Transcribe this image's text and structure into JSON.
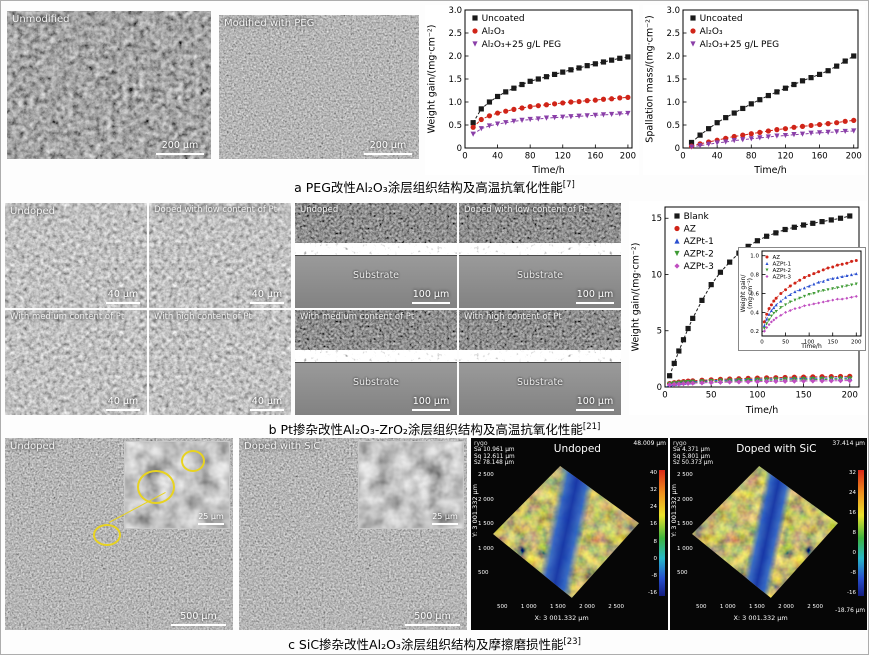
{
  "section_a": {
    "caption": "a PEG改性Al₂O₃涂层组织结构及高温抗氧化性能",
    "ref": "[7]",
    "sem1": {
      "label": "Unmodified",
      "scale": "200 μm"
    },
    "sem2": {
      "label": "Modified with PEG",
      "scale": "200 μm"
    }
  },
  "section_b": {
    "caption": "b Pt掺杂改性Al₂O₃-ZrO₂涂层组织结构及高温抗氧化性能",
    "ref": "[21]",
    "sem_grid": [
      {
        "label": "Undoped",
        "scale": "40 μm"
      },
      {
        "label": "Doped with low content of Pt",
        "scale": "40 μm"
      },
      {
        "label": "With medium content of Pt",
        "scale": "40 μm"
      },
      {
        "label": "With high content of Pt",
        "scale": "40 μm"
      }
    ],
    "cross_grid": [
      {
        "label": "Undoped",
        "substrate": "Substrate",
        "scale": "100 μm"
      },
      {
        "label": "Doped with low content of Pt",
        "substrate": "Substrate",
        "scale": "100 μm"
      },
      {
        "label": "With medium content of Pt",
        "substrate": "Substrate",
        "scale": "100 μm"
      },
      {
        "label": "With high content of Pt",
        "substrate": "Substrate",
        "scale": "100 μm"
      }
    ]
  },
  "section_c": {
    "caption": "c SiC掺杂改性Al₂O₃涂层组织结构及摩擦磨损性能",
    "ref": "[23]",
    "sem1": {
      "label": "Undoped",
      "scale": "500 μm",
      "inset_scale": "25 μm"
    },
    "sem2": {
      "label": "Doped with SiC",
      "scale": "500 μm",
      "inset_scale": "25 μm"
    },
    "profile1": {
      "brand": "rygo",
      "title": "Undoped",
      "stats": [
        "Sa 10.961 μm",
        "Sq 12.611 μm",
        "Sz 78.148 μm"
      ],
      "max_label": "48.009 μm",
      "colorbar_ticks": [
        "40",
        "32",
        "24",
        "16",
        "8",
        "0",
        "-8",
        "-16"
      ],
      "x_axis_label": "X: 3 001.332 μm",
      "y_axis_label": "Y: 3 001.332 μm",
      "x_ticks": [
        "500",
        "1 000",
        "1 500",
        "2 000",
        "2 500"
      ],
      "y_ticks": [
        "2 500",
        "2 000",
        "1 500",
        "1 000",
        "500"
      ]
    },
    "profile2": {
      "brand": "rygo",
      "title": "Doped with SiC",
      "stats": [
        "Sa 4.371 μm",
        "Sq 5.801 μm",
        "Sz 50.373 μm"
      ],
      "max_label": "37.414 μm",
      "min_label": "-18.76 μm",
      "colorbar_ticks": [
        "32",
        "24",
        "16",
        "8",
        "0",
        "-8",
        "-16"
      ],
      "x_axis_label": "X: 3 001.332 μm",
      "y_axis_label": "Y: 3 001.332 μm",
      "x_ticks": [
        "500",
        "1 000",
        "1 500",
        "2 000",
        "2 500"
      ],
      "y_ticks": [
        "2 500",
        "2 000",
        "1 500",
        "1 000",
        "500"
      ]
    }
  },
  "chart_data": [
    {
      "id": "peg-weight-gain",
      "type": "line",
      "xlabel": "Time/h",
      "ylabel": "Weight gain/(mg·cm⁻²)",
      "xlim": [
        0,
        205
      ],
      "ylim": [
        0,
        3.0
      ],
      "xticks": [
        0,
        40,
        80,
        120,
        160,
        200
      ],
      "xtick_labels": [
        "0",
        "40",
        "80",
        "120",
        "160",
        "200"
      ],
      "yticks": [
        0,
        0.5,
        1.0,
        1.5,
        2.0,
        2.5,
        3.0
      ],
      "ytick_labels": [
        "0",
        "0.5",
        "1.0",
        "1.5",
        "2.0",
        "2.5",
        "3.0"
      ],
      "x": [
        10,
        20,
        30,
        40,
        50,
        60,
        70,
        80,
        90,
        100,
        110,
        120,
        130,
        140,
        150,
        160,
        170,
        180,
        190,
        200
      ],
      "series": [
        {
          "name": "Uncoated",
          "color": "#1a1a1a",
          "marker": "square",
          "y": [
            0.55,
            0.85,
            1.0,
            1.12,
            1.22,
            1.3,
            1.38,
            1.45,
            1.5,
            1.55,
            1.6,
            1.65,
            1.7,
            1.74,
            1.79,
            1.83,
            1.87,
            1.91,
            1.95,
            1.98
          ]
        },
        {
          "name": "Al₂O₃",
          "color": "#d02418",
          "marker": "circle",
          "y": [
            0.45,
            0.62,
            0.7,
            0.76,
            0.8,
            0.84,
            0.87,
            0.9,
            0.92,
            0.94,
            0.96,
            0.98,
            1.0,
            1.01,
            1.03,
            1.04,
            1.06,
            1.07,
            1.09,
            1.1
          ]
        },
        {
          "name": "Al₂O₃+25 g/L PEG",
          "color": "#8a3fa8",
          "marker": "triangle-down",
          "y": [
            0.3,
            0.42,
            0.48,
            0.52,
            0.55,
            0.58,
            0.6,
            0.62,
            0.63,
            0.65,
            0.66,
            0.67,
            0.68,
            0.69,
            0.7,
            0.71,
            0.72,
            0.73,
            0.74,
            0.75
          ]
        }
      ],
      "margins": {
        "l": 40,
        "r": 7,
        "t": 5,
        "b": 27
      },
      "fonts": {
        "tick": 8.5,
        "label": 9.5,
        "legend": 9
      },
      "ms": 2.6,
      "legend_dx": 10,
      "legend_dy": 8,
      "legend_lh": 13,
      "dash": "3 2",
      "lw": 1
    },
    {
      "id": "peg-spallation",
      "type": "line",
      "xlabel": "Time/h",
      "ylabel": "Spallation mass/(mg·cm⁻²)",
      "xlim": [
        0,
        205
      ],
      "ylim": [
        0,
        3.0
      ],
      "xticks": [
        0,
        40,
        80,
        120,
        160,
        200
      ],
      "xtick_labels": [
        "0",
        "40",
        "80",
        "120",
        "160",
        "200"
      ],
      "yticks": [
        0,
        0.5,
        1.0,
        1.5,
        2.0,
        2.5,
        3.0
      ],
      "ytick_labels": [
        "0",
        "0.5",
        "1.0",
        "1.5",
        "2.0",
        "2.5",
        "3.0"
      ],
      "x": [
        10,
        20,
        30,
        40,
        50,
        60,
        70,
        80,
        90,
        100,
        110,
        120,
        130,
        140,
        150,
        160,
        170,
        180,
        190,
        200
      ],
      "series": [
        {
          "name": "Uncoated",
          "color": "#1a1a1a",
          "marker": "square",
          "y": [
            0.12,
            0.28,
            0.42,
            0.55,
            0.66,
            0.76,
            0.86,
            0.96,
            1.05,
            1.14,
            1.22,
            1.3,
            1.38,
            1.46,
            1.53,
            1.6,
            1.68,
            1.78,
            1.89,
            2.0
          ]
        },
        {
          "name": "Al₂O₃",
          "color": "#d02418",
          "marker": "circle",
          "y": [
            0.04,
            0.09,
            0.13,
            0.17,
            0.21,
            0.25,
            0.28,
            0.31,
            0.34,
            0.37,
            0.4,
            0.42,
            0.45,
            0.47,
            0.49,
            0.51,
            0.53,
            0.55,
            0.58,
            0.6
          ]
        },
        {
          "name": "Al₂O₃+25 g/L PEG",
          "color": "#8a3fa8",
          "marker": "triangle-down",
          "y": [
            0.02,
            0.05,
            0.08,
            0.11,
            0.13,
            0.16,
            0.18,
            0.2,
            0.22,
            0.24,
            0.26,
            0.27,
            0.29,
            0.3,
            0.32,
            0.33,
            0.34,
            0.35,
            0.36,
            0.37
          ]
        }
      ],
      "margins": {
        "l": 40,
        "r": 7,
        "t": 5,
        "b": 27
      },
      "fonts": {
        "tick": 8.5,
        "label": 9.5,
        "legend": 9
      },
      "ms": 2.6,
      "legend_dx": 10,
      "legend_dy": 8,
      "legend_lh": 13,
      "dash": "3 2",
      "lw": 1
    },
    {
      "id": "pt-weight-gain",
      "type": "line",
      "xlabel": "Time/h",
      "ylabel": "Weight gain/(mg·cm⁻²)",
      "xlim": [
        0,
        210
      ],
      "ylim": [
        0,
        16
      ],
      "xticks": [
        0,
        50,
        100,
        150,
        200
      ],
      "xtick_labels": [
        "0",
        "50",
        "100",
        "150",
        "200"
      ],
      "yticks": [
        0,
        5,
        10,
        15
      ],
      "ytick_labels": [
        "0",
        "5",
        "10",
        "15"
      ],
      "x": [
        5,
        10,
        15,
        20,
        25,
        30,
        40,
        50,
        60,
        70,
        80,
        90,
        100,
        110,
        120,
        130,
        140,
        150,
        160,
        170,
        180,
        190,
        200
      ],
      "series": [
        {
          "name": "Blank",
          "color": "#1a1a1a",
          "marker": "square",
          "y": [
            1.0,
            2.1,
            3.2,
            4.2,
            5.2,
            6.1,
            7.7,
            9.1,
            10.2,
            11.1,
            11.9,
            12.5,
            13.0,
            13.4,
            13.7,
            14.0,
            14.2,
            14.4,
            14.55,
            14.7,
            14.85,
            15.0,
            15.2
          ]
        },
        {
          "name": "AZ",
          "color": "#d02418",
          "marker": "circle",
          "y": [
            0.3,
            0.38,
            0.44,
            0.48,
            0.52,
            0.55,
            0.6,
            0.64,
            0.68,
            0.71,
            0.74,
            0.77,
            0.79,
            0.81,
            0.83,
            0.85,
            0.87,
            0.88,
            0.9,
            0.91,
            0.92,
            0.94,
            0.95
          ]
        },
        {
          "name": "AZPt-1",
          "color": "#2a4fd0",
          "marker": "triangle-up",
          "y": [
            0.26,
            0.33,
            0.38,
            0.42,
            0.45,
            0.48,
            0.52,
            0.56,
            0.59,
            0.62,
            0.64,
            0.66,
            0.68,
            0.7,
            0.72,
            0.73,
            0.75,
            0.76,
            0.77,
            0.78,
            0.79,
            0.8,
            0.81
          ]
        },
        {
          "name": "AZPt-2",
          "color": "#3f9b35",
          "marker": "triangle-down",
          "y": [
            0.23,
            0.28,
            0.32,
            0.36,
            0.39,
            0.41,
            0.45,
            0.48,
            0.51,
            0.53,
            0.55,
            0.57,
            0.59,
            0.6,
            0.62,
            0.63,
            0.64,
            0.65,
            0.66,
            0.67,
            0.68,
            0.69,
            0.7
          ]
        },
        {
          "name": "AZPt-3",
          "color": "#c04ec0",
          "marker": "diamond",
          "y": [
            0.2,
            0.24,
            0.27,
            0.3,
            0.32,
            0.34,
            0.37,
            0.4,
            0.42,
            0.44,
            0.45,
            0.47,
            0.48,
            0.49,
            0.5,
            0.51,
            0.52,
            0.53,
            0.54,
            0.54,
            0.55,
            0.56,
            0.57
          ]
        }
      ],
      "margins": {
        "l": 36,
        "r": 8,
        "t": 6,
        "b": 28
      },
      "fonts": {
        "tick": 8.5,
        "label": 9.5,
        "legend": 9
      },
      "ms": 2.6,
      "legend_dx": 12,
      "legend_dy": 9,
      "legend_lh": 12.5,
      "dash": "3 2",
      "lw": 1
    },
    {
      "id": "pt-weight-gain-inset",
      "type": "line",
      "xlabel": "Time/h",
      "ylabel": [
        "Weight gain/",
        "(mg·cm⁻²)"
      ],
      "xlim": [
        0,
        210
      ],
      "ylim": [
        0.15,
        1.05
      ],
      "xticks": [
        0,
        50,
        100,
        150,
        200
      ],
      "xtick_labels": [
        "0",
        "50",
        "100",
        "150",
        "200"
      ],
      "yticks": [
        0.2,
        0.4,
        0.6,
        0.8,
        1.0
      ],
      "ytick_labels": [
        "0.2",
        "0.4",
        "0.6",
        "0.8",
        "1.0"
      ],
      "x": [
        5,
        10,
        15,
        20,
        25,
        30,
        40,
        50,
        60,
        70,
        80,
        90,
        100,
        110,
        120,
        130,
        140,
        150,
        160,
        170,
        180,
        190,
        200
      ],
      "series": [
        {
          "name": "AZ",
          "color": "#d02418",
          "marker": "circle",
          "y": [
            0.3,
            0.38,
            0.44,
            0.48,
            0.52,
            0.55,
            0.6,
            0.64,
            0.68,
            0.71,
            0.74,
            0.77,
            0.79,
            0.81,
            0.83,
            0.85,
            0.87,
            0.88,
            0.9,
            0.91,
            0.92,
            0.94,
            0.95
          ]
        },
        {
          "name": "AZPt-1",
          "color": "#2a4fd0",
          "marker": "triangle-up",
          "y": [
            0.26,
            0.33,
            0.38,
            0.42,
            0.45,
            0.48,
            0.52,
            0.56,
            0.59,
            0.62,
            0.64,
            0.66,
            0.68,
            0.7,
            0.72,
            0.73,
            0.75,
            0.76,
            0.77,
            0.78,
            0.79,
            0.8,
            0.81
          ]
        },
        {
          "name": "AZPt-2",
          "color": "#3f9b35",
          "marker": "triangle-down",
          "y": [
            0.23,
            0.28,
            0.32,
            0.36,
            0.39,
            0.41,
            0.45,
            0.48,
            0.51,
            0.53,
            0.55,
            0.57,
            0.59,
            0.6,
            0.62,
            0.63,
            0.64,
            0.65,
            0.66,
            0.67,
            0.68,
            0.69,
            0.7
          ]
        },
        {
          "name": "AZPt-3",
          "color": "#c04ec0",
          "marker": "diamond",
          "y": [
            0.2,
            0.24,
            0.27,
            0.3,
            0.32,
            0.34,
            0.37,
            0.4,
            0.42,
            0.44,
            0.45,
            0.47,
            0.48,
            0.49,
            0.5,
            0.51,
            0.52,
            0.53,
            0.54,
            0.54,
            0.55,
            0.56,
            0.57
          ]
        }
      ],
      "margins": {
        "l": 23,
        "r": 4,
        "t": 3,
        "b": 14
      },
      "fonts": {
        "tick": 5.5,
        "label": 6,
        "legend": 5.5
      },
      "ms": 1.5,
      "legend_dx": 5,
      "legend_dy": 6,
      "legend_lh": 6.5,
      "dash": "2 1.5",
      "lw": 0.7
    }
  ]
}
